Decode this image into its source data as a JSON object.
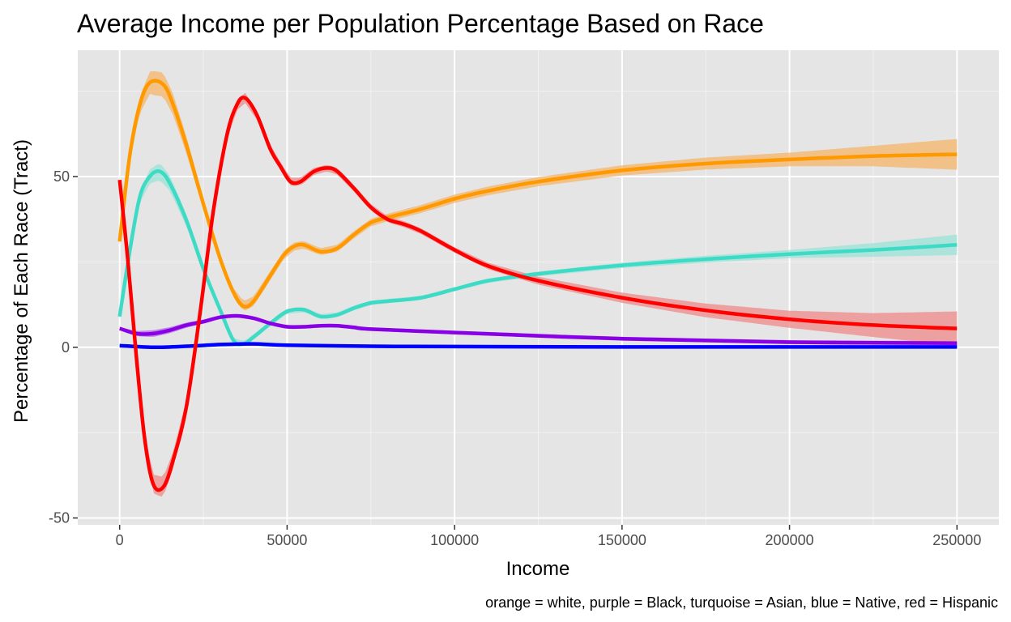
{
  "chart_data": {
    "type": "line",
    "title": "Average Income per Population Percentage Based on Race",
    "xlabel": "Income",
    "ylabel": "Percentage of Each Race (Tract)",
    "caption": "orange = white, purple = Black, turquoise = Asian, blue = Native, red = Hispanic",
    "xlim": [
      -12500,
      262500
    ],
    "ylim": [
      -52,
      87
    ],
    "x_ticks": [
      0,
      50000,
      100000,
      150000,
      200000,
      250000
    ],
    "x_tick_labels": [
      "0",
      "50000",
      "100000",
      "150000",
      "200000",
      "250000"
    ],
    "y_ticks": [
      -50,
      0,
      50
    ],
    "y_tick_labels": [
      "-50",
      "0",
      "50"
    ],
    "grid": true,
    "background": "#e5e5e5",
    "series": [
      {
        "color": "#ff9900",
        "band_color": "#f4b870",
        "points": [
          [
            0,
            31
          ],
          [
            3000,
            56
          ],
          [
            6000,
            71
          ],
          [
            9000,
            77.5
          ],
          [
            13000,
            77
          ],
          [
            16000,
            71
          ],
          [
            20000,
            59
          ],
          [
            25000,
            42
          ],
          [
            30000,
            26
          ],
          [
            34000,
            16
          ],
          [
            37000,
            12
          ],
          [
            40000,
            13.5
          ],
          [
            45000,
            21
          ],
          [
            49000,
            27
          ],
          [
            52000,
            29.5
          ],
          [
            55000,
            30
          ],
          [
            60000,
            28
          ],
          [
            65000,
            29
          ],
          [
            70000,
            33
          ],
          [
            75000,
            36.5
          ],
          [
            80000,
            38
          ],
          [
            90000,
            40.5
          ],
          [
            100000,
            43.5
          ],
          [
            110000,
            45.8
          ],
          [
            125000,
            48.5
          ],
          [
            150000,
            51.8
          ],
          [
            175000,
            53.8
          ],
          [
            200000,
            55
          ],
          [
            225000,
            56
          ],
          [
            250000,
            56.5
          ]
        ],
        "band": [
          [
            0,
            1
          ],
          [
            10000,
            3.5
          ],
          [
            13000,
            3.5
          ],
          [
            30000,
            1
          ],
          [
            37000,
            1.5
          ],
          [
            60000,
            1
          ],
          [
            150000,
            1.5
          ],
          [
            200000,
            2
          ],
          [
            225000,
            3
          ],
          [
            250000,
            4.5
          ]
        ]
      },
      {
        "color": "#3ddbc5",
        "band_color": "#9ee3d8",
        "points": [
          [
            0,
            9
          ],
          [
            3000,
            28
          ],
          [
            6000,
            44
          ],
          [
            9000,
            50
          ],
          [
            12000,
            51.5
          ],
          [
            15000,
            48
          ],
          [
            20000,
            37
          ],
          [
            25000,
            23
          ],
          [
            30000,
            11
          ],
          [
            34000,
            2
          ],
          [
            37000,
            1
          ],
          [
            40000,
            3
          ],
          [
            45000,
            7
          ],
          [
            50000,
            10.5
          ],
          [
            55000,
            11
          ],
          [
            60000,
            9
          ],
          [
            65000,
            9.5
          ],
          [
            70000,
            11.5
          ],
          [
            75000,
            13
          ],
          [
            80000,
            13.5
          ],
          [
            90000,
            14.5
          ],
          [
            100000,
            17
          ],
          [
            110000,
            19.5
          ],
          [
            125000,
            21.5
          ],
          [
            150000,
            24
          ],
          [
            175000,
            25.8
          ],
          [
            200000,
            27.3
          ],
          [
            225000,
            28.5
          ],
          [
            250000,
            30
          ]
        ],
        "band": [
          [
            0,
            0.8
          ],
          [
            12000,
            2.5
          ],
          [
            30000,
            0.8
          ],
          [
            100000,
            0.6
          ],
          [
            150000,
            0.8
          ],
          [
            200000,
            1.2
          ],
          [
            225000,
            2
          ],
          [
            250000,
            3
          ]
        ]
      },
      {
        "color": "#8a00e6",
        "band_color": "#b56ee6",
        "points": [
          [
            0,
            5.5
          ],
          [
            5000,
            4
          ],
          [
            10000,
            4
          ],
          [
            15000,
            5
          ],
          [
            20000,
            6.5
          ],
          [
            25000,
            7.5
          ],
          [
            30000,
            8.8
          ],
          [
            35000,
            9.2
          ],
          [
            40000,
            8.5
          ],
          [
            45000,
            7
          ],
          [
            50000,
            6
          ],
          [
            55000,
            6
          ],
          [
            60000,
            6.3
          ],
          [
            65000,
            6.3
          ],
          [
            70000,
            5.8
          ],
          [
            75000,
            5.3
          ],
          [
            100000,
            4.3
          ],
          [
            150000,
            2.5
          ],
          [
            200000,
            1.5
          ],
          [
            250000,
            1.2
          ]
        ],
        "band": [
          [
            0,
            0.5
          ],
          [
            10000,
            1
          ],
          [
            30000,
            0.5
          ],
          [
            250000,
            0.6
          ]
        ]
      },
      {
        "color": "#0000ff",
        "band_color": "#6e6eff",
        "points": [
          [
            0,
            0.5
          ],
          [
            10000,
            0
          ],
          [
            20000,
            0.3
          ],
          [
            30000,
            0.8
          ],
          [
            40000,
            1
          ],
          [
            50000,
            0.6
          ],
          [
            75000,
            0.3
          ],
          [
            100000,
            0.2
          ],
          [
            150000,
            0.1
          ],
          [
            200000,
            0.1
          ],
          [
            250000,
            0.1
          ]
        ],
        "band": [
          [
            0,
            0.3
          ],
          [
            250000,
            0.3
          ]
        ]
      },
      {
        "color": "#ff0000",
        "band_color": "#ef8e8e",
        "points": [
          [
            0,
            49
          ],
          [
            2500,
            25
          ],
          [
            5000,
            -3
          ],
          [
            7500,
            -27
          ],
          [
            10000,
            -40
          ],
          [
            13000,
            -41
          ],
          [
            16000,
            -33
          ],
          [
            20000,
            -17
          ],
          [
            24000,
            10
          ],
          [
            28000,
            40
          ],
          [
            32000,
            62
          ],
          [
            35000,
            71
          ],
          [
            37500,
            73
          ],
          [
            41000,
            68
          ],
          [
            45000,
            58
          ],
          [
            48000,
            53
          ],
          [
            51000,
            48.5
          ],
          [
            54000,
            48.5
          ],
          [
            58000,
            51.5
          ],
          [
            62000,
            52.5
          ],
          [
            65000,
            51.5
          ],
          [
            70000,
            46.5
          ],
          [
            75000,
            41
          ],
          [
            80000,
            37.5
          ],
          [
            85000,
            36
          ],
          [
            90000,
            34
          ],
          [
            100000,
            28.5
          ],
          [
            110000,
            23.8
          ],
          [
            125000,
            19.5
          ],
          [
            150000,
            14.5
          ],
          [
            175000,
            10.8
          ],
          [
            200000,
            8.2
          ],
          [
            225000,
            6.5
          ],
          [
            250000,
            5.5
          ]
        ],
        "band": [
          [
            0,
            1
          ],
          [
            12000,
            3
          ],
          [
            20000,
            2
          ],
          [
            37000,
            1.5
          ],
          [
            60000,
            1
          ],
          [
            100000,
            0.8
          ],
          [
            150000,
            1.5
          ],
          [
            200000,
            2.5
          ],
          [
            225000,
            3.5
          ],
          [
            250000,
            5
          ]
        ]
      }
    ]
  }
}
